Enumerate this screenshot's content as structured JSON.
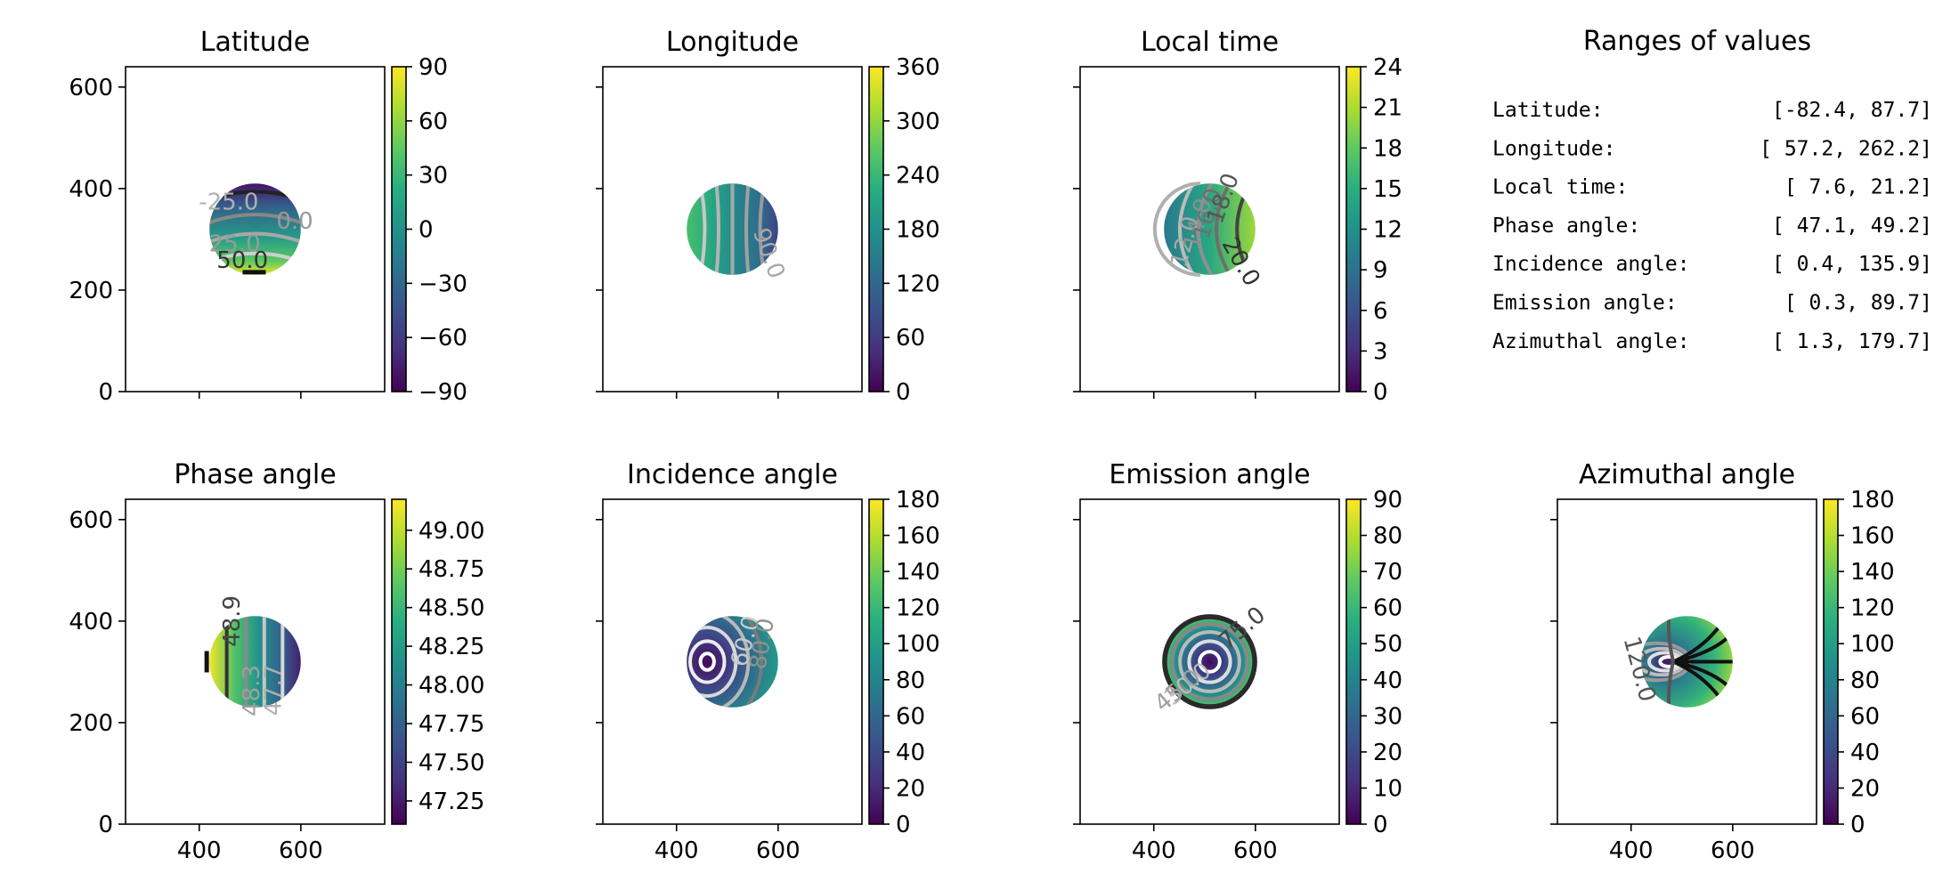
{
  "colormap": [
    "#440154",
    "#472f7d",
    "#3b528b",
    "#2c728e",
    "#21918c",
    "#28ae80",
    "#5ec962",
    "#addc30",
    "#fde725"
  ],
  "chart_data": [
    {
      "type": "heatmap",
      "title": "Latitude",
      "xticks": [
        400,
        600
      ],
      "yticks": [
        0,
        200,
        400,
        600
      ],
      "xlim": [
        255,
        765
      ],
      "ylim": [
        0,
        640
      ],
      "show_xticklabels": false,
      "show_yticklabels": true,
      "disk": {
        "cx": 510,
        "cy": 320,
        "r": 90
      },
      "colorbar": {
        "min": -90,
        "max": 90,
        "ticks": [
          -90,
          -60,
          -30,
          0,
          30,
          60,
          90
        ],
        "labels": [
          "−90",
          "−60",
          "−30",
          "0",
          "30",
          "60",
          "90"
        ]
      },
      "field": {
        "kind": "latitude"
      },
      "contour_labels": [
        {
          "text": "-25.0",
          "x": 458,
          "y": 372,
          "rot": 0,
          "color": "#b0b0b0"
        },
        {
          "text": "0.0",
          "x": 588,
          "y": 334,
          "rot": 0,
          "color": "#999999"
        },
        {
          "text": "25.0",
          "x": 470,
          "y": 289,
          "rot": 0,
          "color": "#9a9a9a"
        },
        {
          "text": "50.0",
          "x": 485,
          "y": 257,
          "rot": 0,
          "color": "#333333"
        }
      ]
    },
    {
      "type": "heatmap",
      "title": "Longitude",
      "xticks": [
        400,
        600
      ],
      "yticks": [
        0,
        200,
        400,
        600
      ],
      "xlim": [
        255,
        765
      ],
      "ylim": [
        0,
        640
      ],
      "show_xticklabels": false,
      "show_yticklabels": false,
      "disk": {
        "cx": 510,
        "cy": 320,
        "r": 90
      },
      "colorbar": {
        "min": 0,
        "max": 360,
        "ticks": [
          0,
          60,
          120,
          180,
          240,
          300,
          360
        ],
        "labels": [
          "0",
          "60",
          "120",
          "180",
          "240",
          "300",
          "360"
        ]
      },
      "field": {
        "kind": "longitude"
      },
      "contour_labels": [
        {
          "text": "90.0",
          "x": 580,
          "y": 272,
          "rot": -70,
          "color": "#a8a8a8"
        }
      ]
    },
    {
      "type": "heatmap",
      "title": "Local time",
      "xticks": [
        400,
        600
      ],
      "yticks": [
        0,
        200,
        400,
        600
      ],
      "xlim": [
        255,
        765
      ],
      "ylim": [
        0,
        640
      ],
      "show_xticklabels": false,
      "show_yticklabels": false,
      "disk": {
        "cx": 510,
        "cy": 320,
        "r": 90
      },
      "colorbar": {
        "min": 0,
        "max": 24,
        "ticks": [
          0,
          3,
          6,
          9,
          12,
          15,
          18,
          21,
          24
        ],
        "labels": [
          "0",
          "3",
          "6",
          "9",
          "12",
          "15",
          "18",
          "21",
          "24"
        ]
      },
      "field": {
        "kind": "localtime"
      },
      "contour_labels": [
        {
          "text": "12.0",
          "x": 463,
          "y": 295,
          "rot": 75,
          "color": "#a8a8a8"
        },
        {
          "text": "14.0",
          "x": 488,
          "y": 330,
          "rot": 75,
          "color": "#8f8f8f"
        },
        {
          "text": "16.0",
          "x": 508,
          "y": 350,
          "rot": 75,
          "color": "#6e6e6e"
        },
        {
          "text": "18.0",
          "x": 538,
          "y": 380,
          "rot": 70,
          "color": "#555555"
        },
        {
          "text": "20.0",
          "x": 570,
          "y": 255,
          "rot": -60,
          "color": "#333333"
        }
      ]
    },
    {
      "type": "table",
      "title": "Ranges of values",
      "rows": [
        {
          "label": "Latitude:",
          "value": "[-82.4,  87.7]"
        },
        {
          "label": "Longitude:",
          "value": "[ 57.2, 262.2]"
        },
        {
          "label": "Local time:",
          "value": "[  7.6,  21.2]"
        },
        {
          "label": "Phase angle:",
          "value": "[ 47.1,  49.2]"
        },
        {
          "label": "Incidence angle:",
          "value": "[  0.4, 135.9]"
        },
        {
          "label": "Emission angle:",
          "value": "[  0.3,  89.7]"
        },
        {
          "label": "Azimuthal angle:",
          "value": "[  1.3, 179.7]"
        }
      ]
    },
    {
      "type": "heatmap",
      "title": "Phase angle",
      "xticks": [
        400,
        600
      ],
      "yticks": [
        0,
        200,
        400,
        600
      ],
      "xlim": [
        255,
        765
      ],
      "ylim": [
        0,
        640
      ],
      "show_xticklabels": true,
      "show_yticklabels": true,
      "disk": {
        "cx": 510,
        "cy": 320,
        "r": 90
      },
      "colorbar": {
        "min": 47.1,
        "max": 49.2,
        "ticks": [
          47.25,
          47.5,
          47.75,
          48.0,
          48.25,
          48.5,
          48.75,
          49.0
        ],
        "labels": [
          "47.25",
          "47.50",
          "47.75",
          "48.00",
          "48.25",
          "48.50",
          "48.75",
          "49.00"
        ]
      },
      "field": {
        "kind": "phase"
      },
      "contour_labels": [
        {
          "text": "48.9",
          "x": 466,
          "y": 400,
          "rot": 90,
          "color": "#444444"
        },
        {
          "text": "48.3",
          "x": 505,
          "y": 263,
          "rot": 90,
          "color": "#a0a0a0"
        },
        {
          "text": "47.7",
          "x": 548,
          "y": 264,
          "rot": 90,
          "color": "#b0b0b0"
        }
      ]
    },
    {
      "type": "heatmap",
      "title": "Incidence angle",
      "xticks": [
        400,
        600
      ],
      "yticks": [
        0,
        200,
        400,
        600
      ],
      "xlim": [
        255,
        765
      ],
      "ylim": [
        0,
        640
      ],
      "show_xticklabels": true,
      "show_yticklabels": false,
      "disk": {
        "cx": 510,
        "cy": 320,
        "r": 90
      },
      "colorbar": {
        "min": 0,
        "max": 180,
        "ticks": [
          0,
          20,
          40,
          60,
          80,
          100,
          120,
          140,
          160,
          180
        ],
        "labels": [
          "0",
          "20",
          "40",
          "60",
          "80",
          "100",
          "120",
          "140",
          "160",
          "180"
        ]
      },
      "field": {
        "kind": "incidence"
      },
      "contour_labels": [
        {
          "text": "60.0",
          "x": 537,
          "y": 360,
          "rot": 75,
          "color": "#c8c8c8"
        },
        {
          "text": "80.0",
          "x": 570,
          "y": 355,
          "rot": 80,
          "color": "#909090"
        }
      ]
    },
    {
      "type": "heatmap",
      "title": "Emission angle",
      "xticks": [
        400,
        600
      ],
      "yticks": [
        0,
        200,
        400,
        600
      ],
      "xlim": [
        255,
        765
      ],
      "ylim": [
        0,
        640
      ],
      "show_xticklabels": true,
      "show_yticklabels": false,
      "disk": {
        "cx": 510,
        "cy": 320,
        "r": 90
      },
      "colorbar": {
        "min": 0,
        "max": 90,
        "ticks": [
          0,
          10,
          20,
          30,
          40,
          50,
          60,
          70,
          80,
          90
        ],
        "labels": [
          "0",
          "10",
          "20",
          "30",
          "40",
          "50",
          "60",
          "70",
          "80",
          "90"
        ]
      },
      "field": {
        "kind": "emission"
      },
      "contour_labels": [
        {
          "text": "75.0",
          "x": 575,
          "y": 385,
          "rot": 40,
          "color": "#444444"
        },
        {
          "text": "30.0",
          "x": 468,
          "y": 275,
          "rot": 40,
          "color": "#bbbbbb"
        },
        {
          "text": "45.0",
          "x": 448,
          "y": 262,
          "rot": 40,
          "color": "#a0a0a0"
        }
      ]
    },
    {
      "type": "heatmap",
      "title": "Azimuthal angle",
      "xticks": [
        400,
        600
      ],
      "yticks": [
        0,
        200,
        400,
        600
      ],
      "xlim": [
        255,
        765
      ],
      "ylim": [
        0,
        640
      ],
      "show_xticklabels": true,
      "show_yticklabels": false,
      "disk": {
        "cx": 510,
        "cy": 320,
        "r": 90
      },
      "colorbar": {
        "min": 0,
        "max": 180,
        "ticks": [
          0,
          20,
          40,
          60,
          80,
          100,
          120,
          140,
          160,
          180
        ],
        "labels": [
          "0",
          "20",
          "40",
          "60",
          "80",
          "100",
          "120",
          "140",
          "160",
          "180"
        ]
      },
      "field": {
        "kind": "azimuth"
      },
      "contour_labels": [
        {
          "text": "120.0",
          "x": 415,
          "y": 305,
          "rot": -75,
          "color": "#555555"
        }
      ]
    }
  ]
}
